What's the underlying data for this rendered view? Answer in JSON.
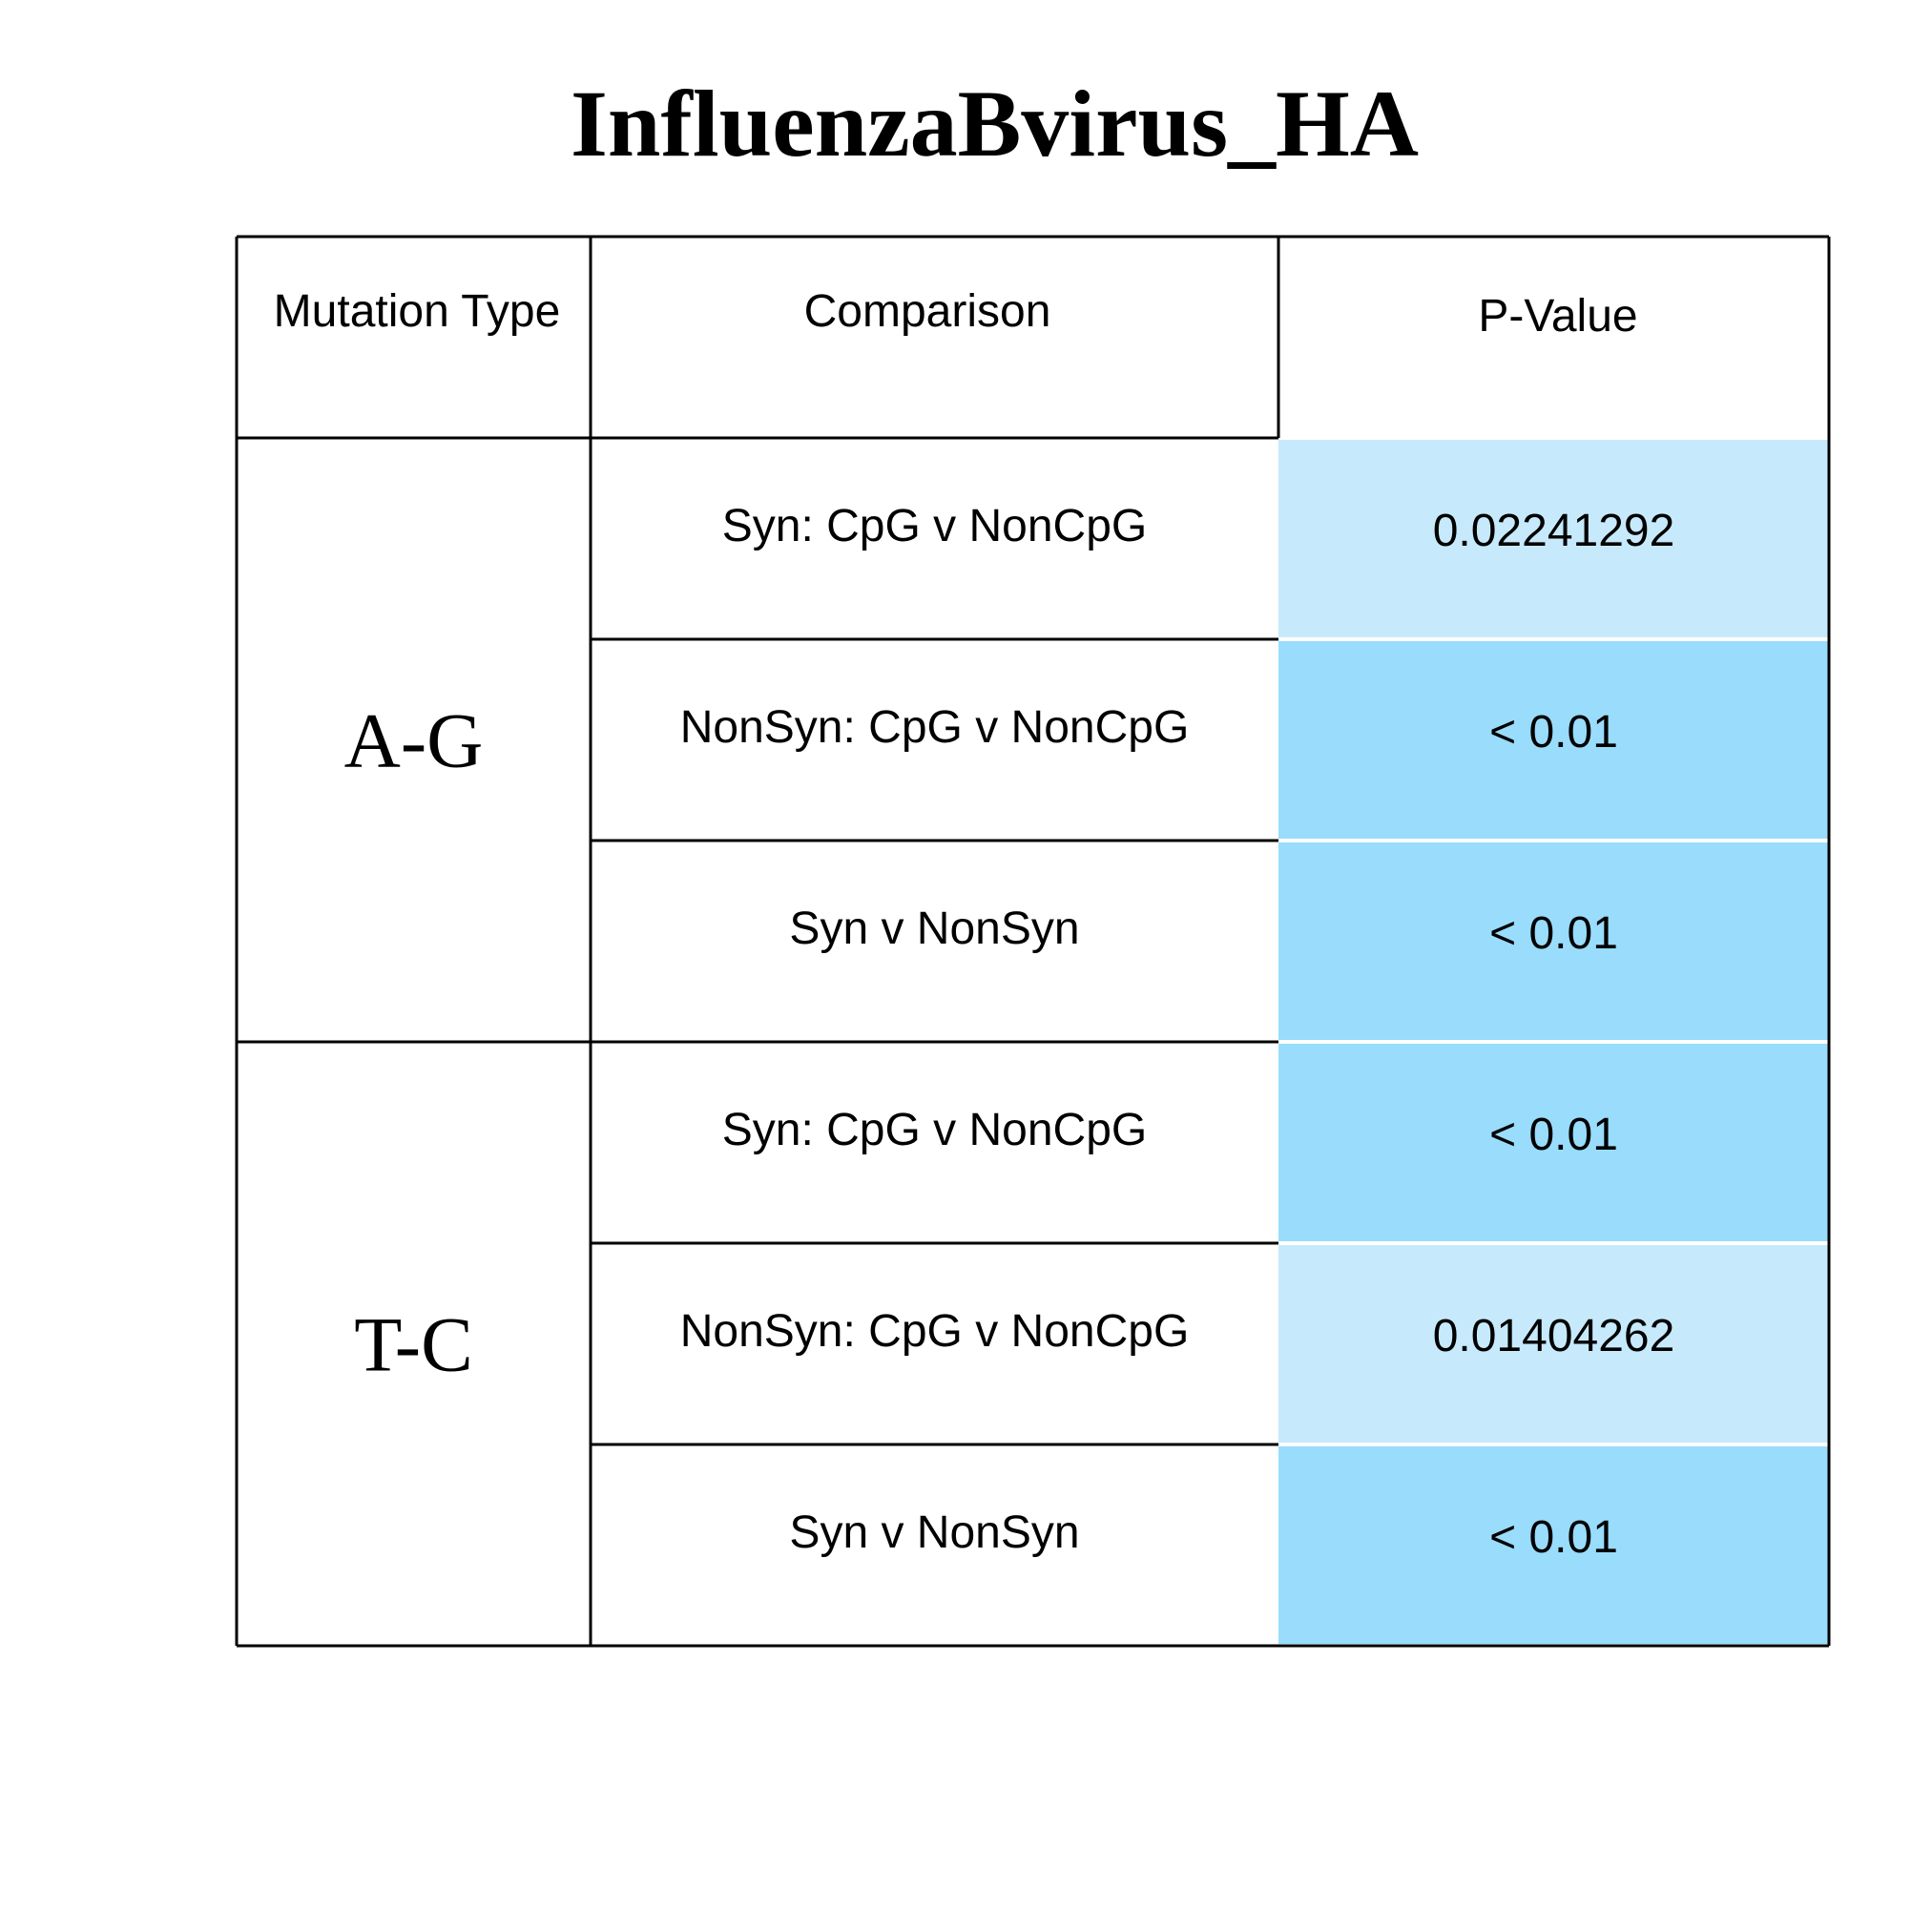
{
  "title": "InfluenzaBvirus_HA",
  "chart_data": {
    "type": "table",
    "title": "InfluenzaBvirus_HA",
    "columns": [
      "Mutation Type",
      "Comparison",
      "P-Value"
    ],
    "groups": [
      {
        "mutation_type": "A-G",
        "rows": [
          {
            "comparison": "Syn: CpG v NonCpG",
            "p_value": "0.02241292",
            "significance": "p<0.05"
          },
          {
            "comparison": "NonSyn: CpG v NonCpG",
            "p_value": "< 0.01",
            "significance": "p<0.01"
          },
          {
            "comparison": "Syn v NonSyn",
            "p_value": "< 0.01",
            "significance": "p<0.01"
          }
        ]
      },
      {
        "mutation_type": "T-C",
        "rows": [
          {
            "comparison": "Syn: CpG v NonCpG",
            "p_value": "< 0.01",
            "significance": "p<0.01"
          },
          {
            "comparison": "NonSyn: CpG v NonCpG",
            "p_value": "0.01404262",
            "significance": "p<0.05"
          },
          {
            "comparison": "Syn v NonSyn",
            "p_value": "< 0.01",
            "significance": "p<0.01"
          }
        ]
      }
    ],
    "colors": {
      "p<0.05": "#c6eafc",
      "p<0.01": "#99dcfc",
      "border": "#000000"
    }
  }
}
